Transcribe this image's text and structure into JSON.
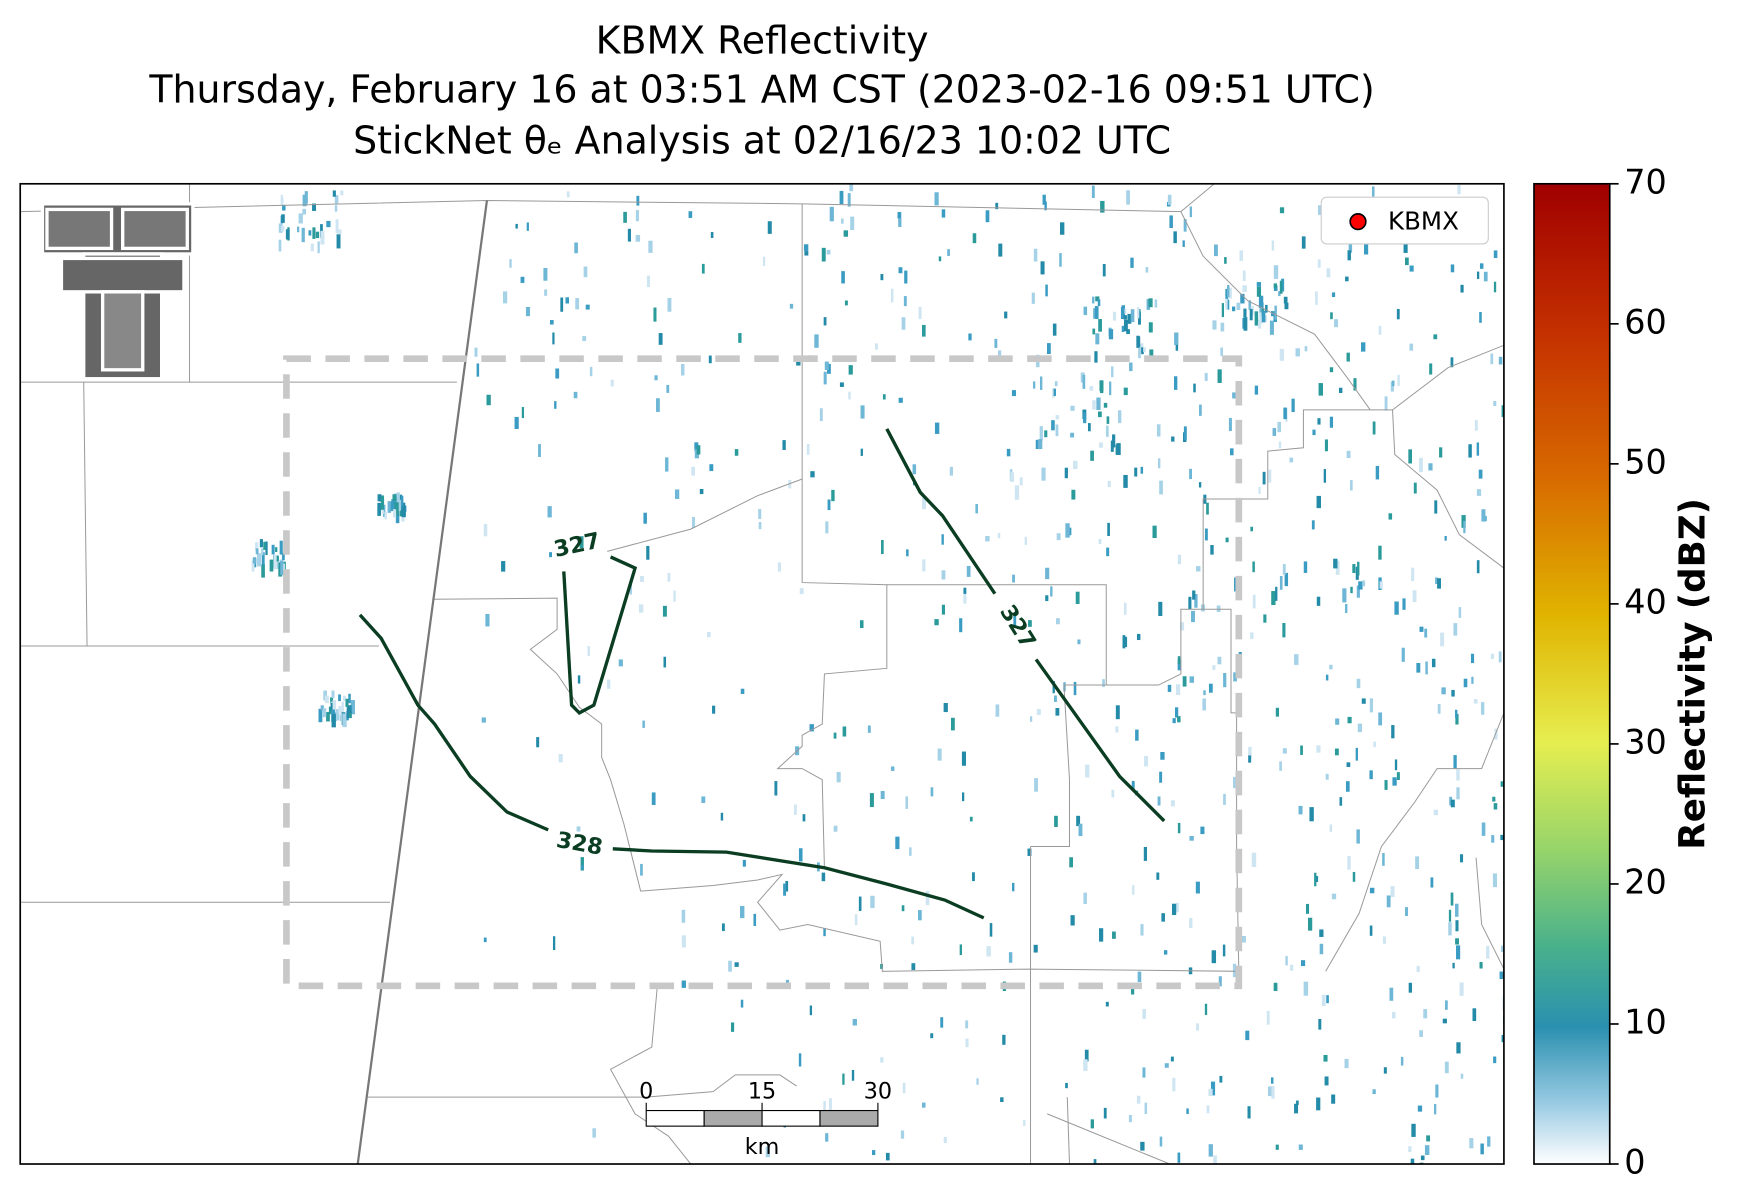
{
  "map": {
    "title": "KBMX Reflectivity",
    "subtitle": "Thursday, February 16 at 03:51 AM CST (2023-02-16 09:51 UTC)",
    "analysis": "StickNet θₑ Analysis at 02/16/23 10:02 UTC",
    "legend": "KBMX",
    "colorbar": {
      "label": "Reflectivity (dBZ)",
      "lim": [
        0,
        70
      ],
      "ticks": [
        0,
        10,
        20,
        30,
        40,
        50,
        60,
        70
      ]
    },
    "contours": [
      {
        "value": 327
      },
      {
        "value": 327
      },
      {
        "value": 328
      }
    ],
    "scale_bar": {
      "ticks": [
        0,
        15,
        30
      ],
      "unit": "km"
    }
  }
}
